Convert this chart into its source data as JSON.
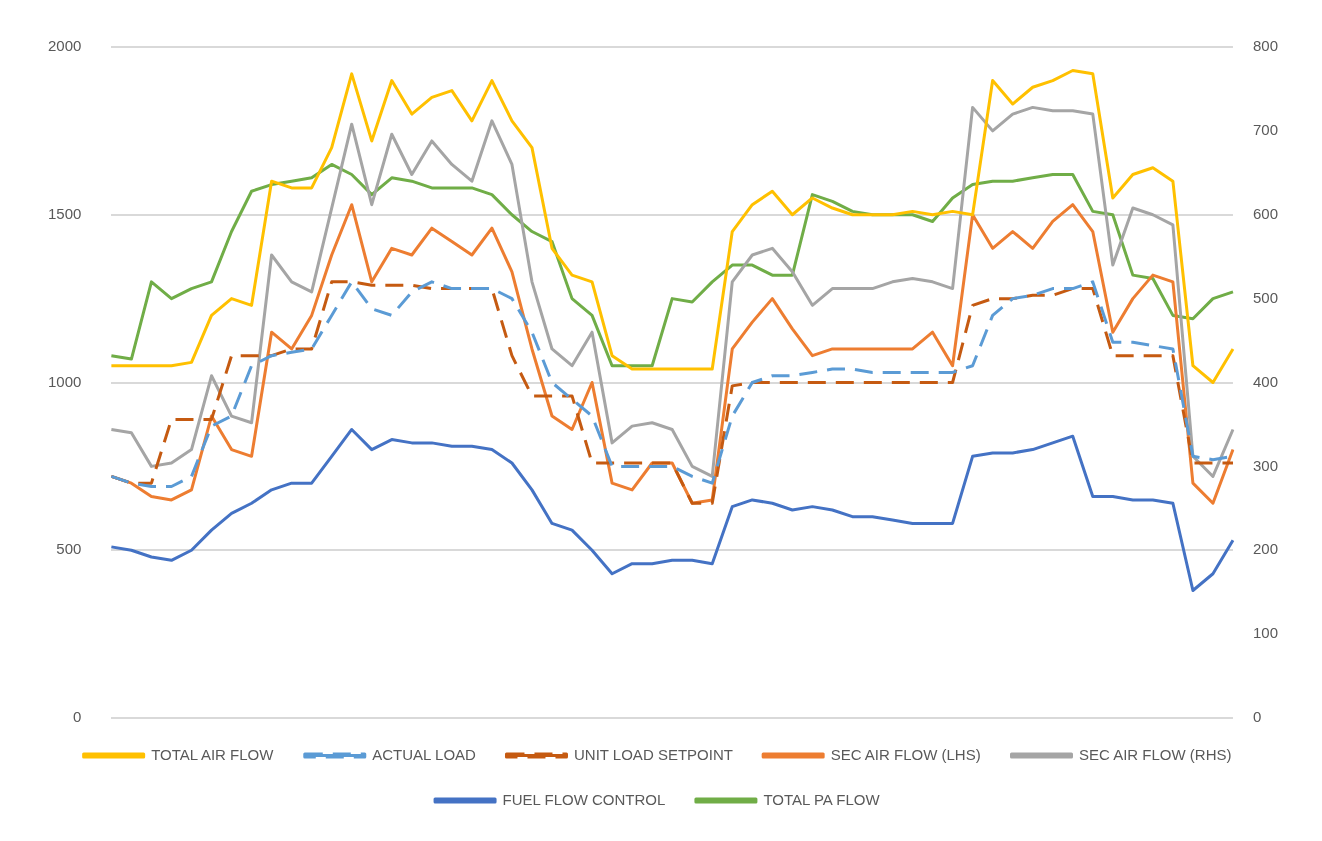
{
  "chart_data": {
    "type": "line",
    "categories": [
      null,
      null,
      null,
      null,
      null,
      null,
      null,
      null,
      null,
      null,
      null,
      null,
      null,
      null,
      null,
      null,
      null,
      null,
      null,
      null,
      null,
      null,
      null,
      null,
      null,
      null,
      null,
      null,
      null,
      null,
      null,
      null,
      null,
      null,
      null,
      null,
      null,
      null,
      null,
      null,
      null,
      null,
      null,
      null,
      null,
      null,
      null,
      null,
      null,
      null,
      null,
      null,
      null,
      null,
      null,
      null,
      null
    ],
    "ylim": [
      0,
      2000
    ],
    "yticks": [
      0,
      500,
      1000,
      1500,
      2000
    ],
    "y2lim": [
      0,
      800
    ],
    "y2ticks": [
      0,
      100,
      200,
      300,
      400,
      500,
      600,
      700,
      800
    ],
    "grid": "y",
    "legend": "bottom",
    "marker": "none",
    "line_style": "solid",
    "series": [
      {
        "name": "TOTAL AIR FLOW",
        "color": "#ffc000",
        "axis": "y",
        "values": [
          1050,
          1050,
          1050,
          1050,
          1060,
          1200,
          1250,
          1230,
          1600,
          1580,
          1580,
          1700,
          1920,
          1720,
          1900,
          1800,
          1850,
          1870,
          1780,
          1900,
          1780,
          1700,
          1400,
          1320,
          1300,
          1080,
          1040,
          1040,
          1040,
          1040,
          1040,
          1450,
          1530,
          1570,
          1500,
          1550,
          1520,
          1500,
          1500,
          1500,
          1510,
          1500,
          1510,
          1500,
          1900,
          1830,
          1880,
          1900,
          1930,
          1920,
          1550,
          1620,
          1640,
          1600,
          1050,
          1000,
          1100
        ]
      },
      {
        "name": "ACTUAL LOAD",
        "color": "#5b9bd5",
        "axis": "y2",
        "line_style": "dashed",
        "values": [
          288,
          280,
          276,
          276,
          288,
          348,
          360,
          420,
          432,
          436,
          440,
          480,
          520,
          488,
          480,
          508,
          520,
          512,
          512,
          512,
          500,
          460,
          400,
          380,
          360,
          300,
          300,
          300,
          300,
          288,
          280,
          360,
          400,
          408,
          408,
          412,
          416,
          416,
          412,
          412,
          412,
          412,
          412,
          420,
          480,
          500,
          504,
          512,
          512,
          520,
          448,
          448,
          444,
          440,
          312,
          308,
          312
        ]
      },
      {
        "name": "UNIT LOAD SETPOINT",
        "color": "#c55a11",
        "axis": "y2",
        "line_style": "dashed",
        "values": [
          288,
          280,
          280,
          356,
          356,
          356,
          432,
          432,
          432,
          440,
          440,
          520,
          520,
          516,
          516,
          516,
          512,
          512,
          512,
          512,
          432,
          384,
          384,
          384,
          304,
          304,
          304,
          304,
          304,
          256,
          256,
          396,
          400,
          400,
          400,
          400,
          400,
          400,
          400,
          400,
          400,
          400,
          400,
          492,
          500,
          500,
          504,
          504,
          512,
          512,
          432,
          432,
          432,
          432,
          304,
          304,
          304
        ]
      },
      {
        "name": "SEC AIR FLOW (LHS)",
        "color": "#ed7d31",
        "axis": "y",
        "values": [
          720,
          700,
          660,
          650,
          680,
          900,
          800,
          780,
          1150,
          1100,
          1200,
          1380,
          1530,
          1300,
          1400,
          1380,
          1460,
          1420,
          1380,
          1460,
          1330,
          1100,
          900,
          860,
          1000,
          700,
          680,
          760,
          760,
          640,
          650,
          1100,
          1180,
          1250,
          1160,
          1080,
          1100,
          1100,
          1100,
          1100,
          1100,
          1150,
          1050,
          1500,
          1400,
          1450,
          1400,
          1480,
          1530,
          1450,
          1150,
          1250,
          1320,
          1300,
          700,
          640,
          800
        ]
      },
      {
        "name": "SEC AIR FLOW (RHS)",
        "color": "#a5a5a5",
        "axis": "y2",
        "values": [
          344,
          340,
          300,
          304,
          320,
          408,
          360,
          352,
          552,
          520,
          508,
          608,
          708,
          612,
          696,
          648,
          688,
          660,
          640,
          712,
          660,
          520,
          440,
          420,
          460,
          328,
          348,
          352,
          344,
          300,
          288,
          520,
          552,
          560,
          532,
          492,
          512,
          512,
          512,
          520,
          524,
          520,
          512,
          728,
          700,
          720,
          728,
          724,
          724,
          720,
          540,
          608,
          600,
          588,
          312,
          288,
          344
        ]
      },
      {
        "name": "FUEL FLOW CONTROL",
        "color": "#4472c4",
        "axis": "y2",
        "values": [
          204,
          200,
          192,
          188,
          200,
          224,
          244,
          256,
          272,
          280,
          280,
          312,
          344,
          320,
          332,
          328,
          328,
          324,
          324,
          320,
          304,
          272,
          232,
          224,
          200,
          172,
          184,
          184,
          188,
          188,
          184,
          252,
          260,
          256,
          248,
          252,
          248,
          240,
          240,
          236,
          232,
          232,
          232,
          312,
          316,
          316,
          320,
          328,
          336,
          264,
          264,
          260,
          260,
          256,
          152,
          172,
          212
        ]
      },
      {
        "name": "TOTAL PA FLOW",
        "color": "#70ad47",
        "axis": "y",
        "values": [
          1080,
          1070,
          1300,
          1250,
          1280,
          1300,
          1450,
          1570,
          1590,
          1600,
          1610,
          1650,
          1620,
          1560,
          1610,
          1600,
          1580,
          1580,
          1580,
          1560,
          1500,
          1450,
          1420,
          1250,
          1200,
          1050,
          1050,
          1050,
          1250,
          1240,
          1300,
          1350,
          1350,
          1320,
          1320,
          1560,
          1540,
          1510,
          1500,
          1500,
          1500,
          1480,
          1550,
          1590,
          1600,
          1600,
          1610,
          1620,
          1620,
          1510,
          1500,
          1320,
          1310,
          1200,
          1190,
          1250,
          1270
        ]
      }
    ]
  }
}
